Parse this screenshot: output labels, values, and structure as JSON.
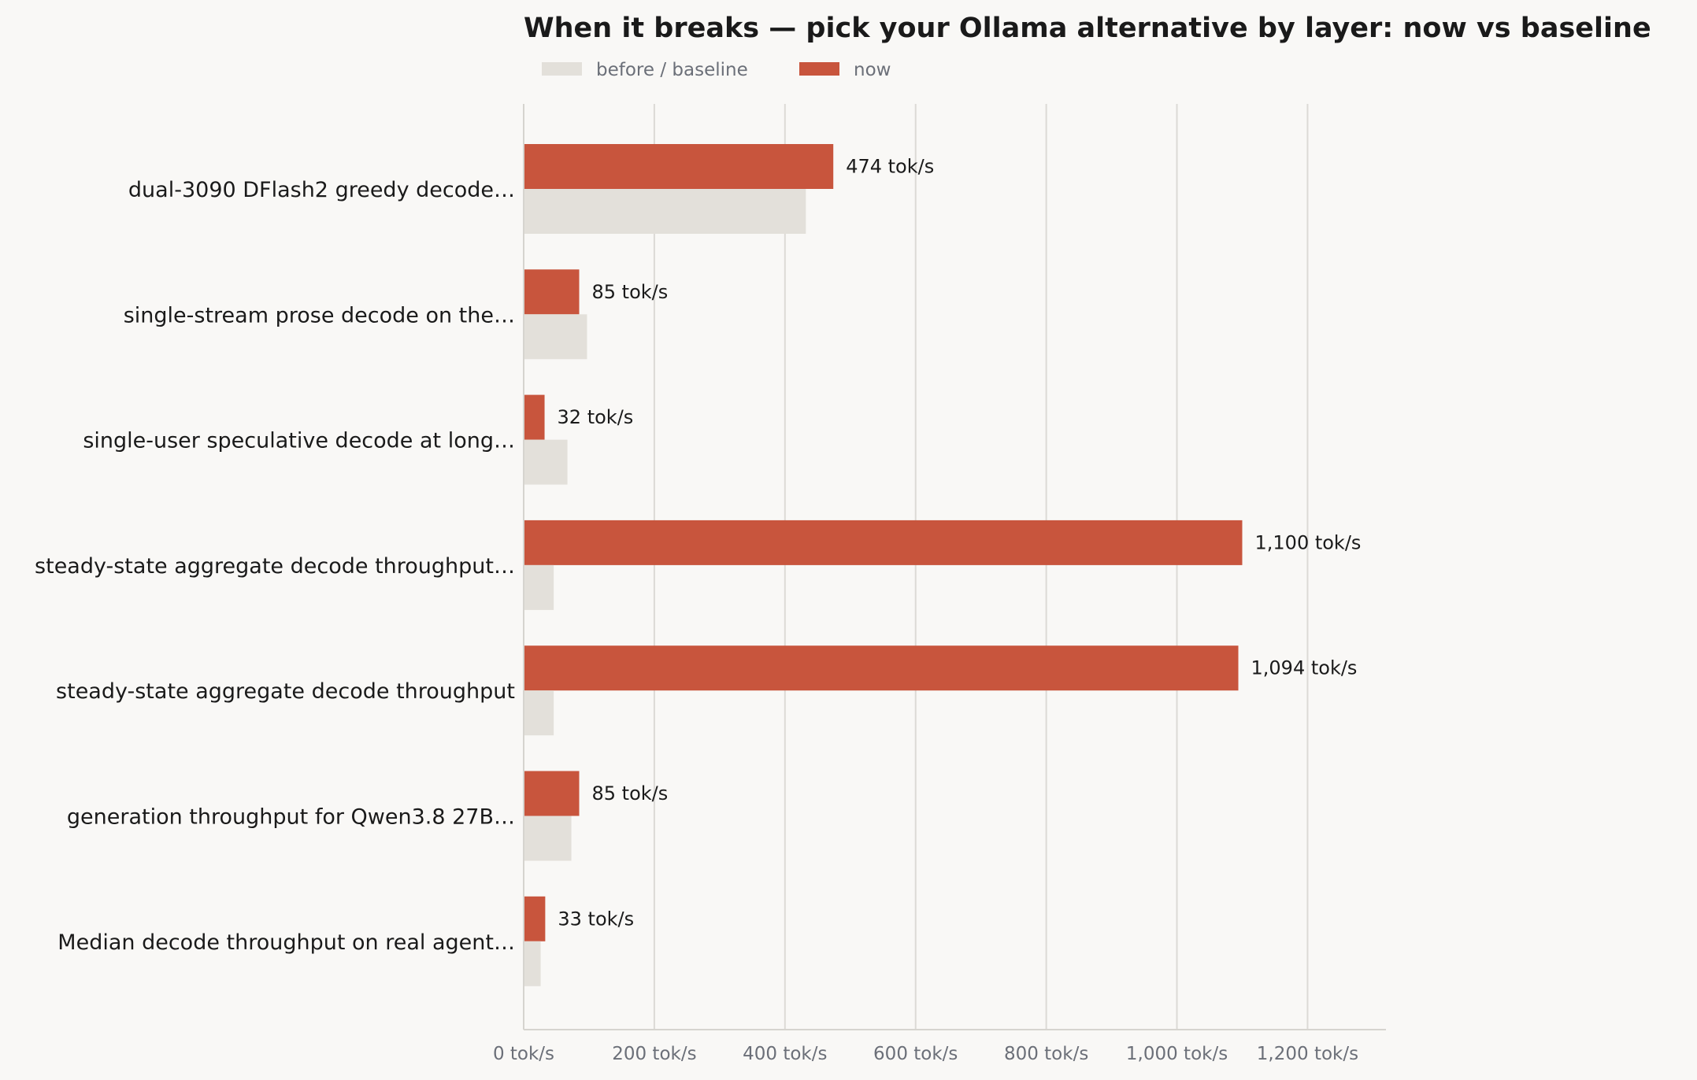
{
  "chart_data": {
    "type": "bar",
    "orientation": "horizontal",
    "title": "When it breaks — pick your Ollama alternative by layer: now vs baseline",
    "xlabel": "",
    "ylabel": "",
    "unit_suffix": " tok/s",
    "xlim": [
      0,
      1320
    ],
    "x_ticks": [
      0,
      200,
      400,
      600,
      800,
      1000,
      1200
    ],
    "x_tick_labels": [
      "0 tok/s",
      "200 tok/s",
      "400 tok/s",
      "600 tok/s",
      "800 tok/s",
      "1,000 tok/s",
      "1,200 tok/s"
    ],
    "grid": "vertical",
    "legend_position": "top-left",
    "categories": [
      "dual-3090 DFlash2 greedy decode…",
      "single-stream prose decode on the…",
      "single-user speculative decode at long…",
      "steady-state aggregate decode throughput…",
      "steady-state aggregate decode throughput",
      "generation throughput for Qwen3.8 27B…",
      "Median decode throughput on real agent…"
    ],
    "series": [
      {
        "name": "before / baseline",
        "color": "#e3e0da",
        "values": [
          432,
          97,
          67,
          46,
          46,
          73,
          26
        ],
        "labels": []
      },
      {
        "name": "now",
        "color": "#c8553d",
        "values": [
          474,
          85,
          32,
          1100,
          1094,
          85,
          33
        ],
        "labels": [
          "474 tok/s",
          "85 tok/s",
          "32 tok/s",
          "1,100 tok/s",
          "1,094 tok/s",
          "85 tok/s",
          "33 tok/s"
        ]
      }
    ]
  }
}
